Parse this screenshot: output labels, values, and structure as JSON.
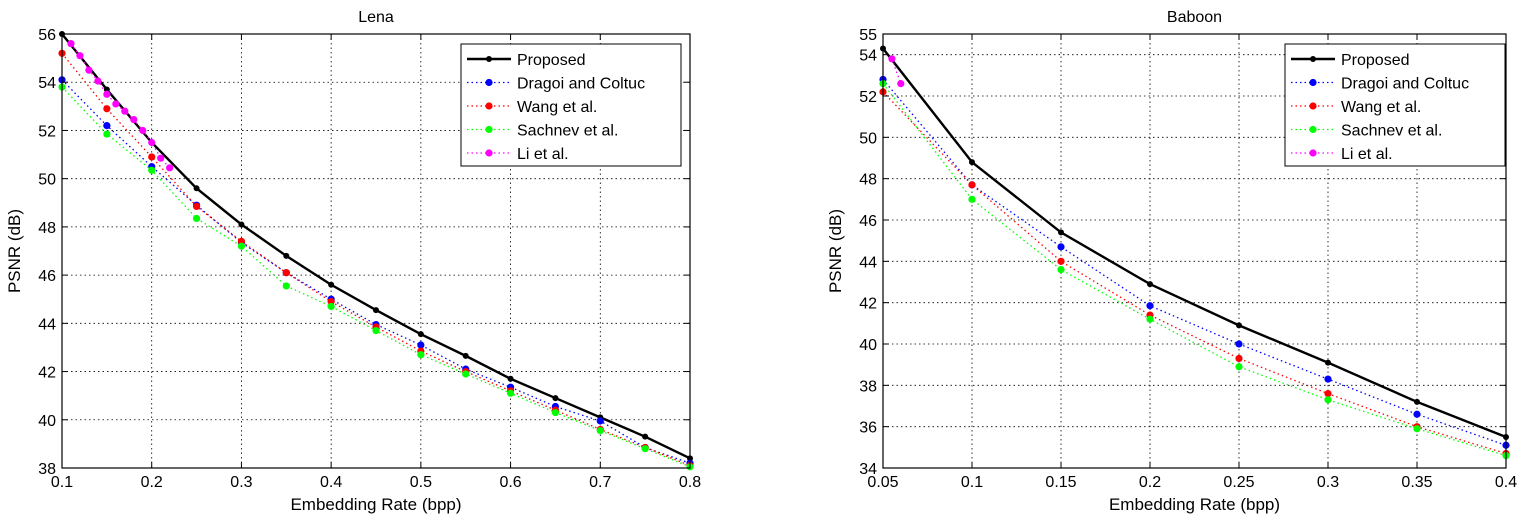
{
  "chart_data": [
    {
      "type": "line",
      "title": "Lena",
      "xlabel": "Embedding Rate (bpp)",
      "ylabel": "PSNR (dB)",
      "xlim": [
        0.1,
        0.8
      ],
      "ylim": [
        38,
        56
      ],
      "xticks": [
        0.1,
        0.2,
        0.3,
        0.4,
        0.5,
        0.6,
        0.7,
        0.8
      ],
      "yticks": [
        38,
        40,
        42,
        44,
        46,
        48,
        50,
        52,
        54,
        56
      ],
      "xtick_labels": [
        "0.1",
        "0.2",
        "0.3",
        "0.4",
        "0.5",
        "0.6",
        "0.7",
        "0.8"
      ],
      "ytick_labels": [
        "38",
        "40",
        "42",
        "44",
        "46",
        "48",
        "50",
        "52",
        "54",
        "56"
      ],
      "grid": true,
      "legend_position": "top-right",
      "series": [
        {
          "name": "Proposed",
          "color": "#000000",
          "style": "solid",
          "x": [
            0.1,
            0.15,
            0.2,
            0.25,
            0.3,
            0.35,
            0.4,
            0.45,
            0.5,
            0.55,
            0.6,
            0.65,
            0.7,
            0.75,
            0.8
          ],
          "y": [
            56.0,
            53.7,
            51.5,
            49.6,
            48.1,
            46.8,
            45.6,
            44.55,
            43.55,
            42.65,
            41.7,
            40.9,
            40.1,
            39.3,
            38.4
          ]
        },
        {
          "name": "Dragoi and Coltuc",
          "color": "#0000ff",
          "style": "dotted",
          "x": [
            0.1,
            0.15,
            0.2,
            0.25,
            0.3,
            0.35,
            0.4,
            0.45,
            0.5,
            0.55,
            0.6,
            0.65,
            0.7,
            0.75,
            0.8
          ],
          "y": [
            54.1,
            52.2,
            50.5,
            48.9,
            47.35,
            46.1,
            45.0,
            43.95,
            43.1,
            42.1,
            41.35,
            40.55,
            39.95,
            38.85,
            38.2
          ]
        },
        {
          "name": "Wang et al.",
          "color": "#ff0000",
          "style": "dotted",
          "x": [
            0.1,
            0.15,
            0.2,
            0.25,
            0.3,
            0.35,
            0.4,
            0.45,
            0.5,
            0.55,
            0.6,
            0.65,
            0.7,
            0.75,
            0.8
          ],
          "y": [
            55.2,
            52.9,
            50.9,
            48.85,
            47.4,
            46.1,
            44.9,
            43.85,
            42.85,
            42.0,
            41.2,
            40.4,
            39.6,
            38.85,
            38.1
          ]
        },
        {
          "name": "Sachnev et al.",
          "color": "#00ff00",
          "style": "dotted",
          "x": [
            0.1,
            0.15,
            0.2,
            0.25,
            0.3,
            0.35,
            0.4,
            0.45,
            0.5,
            0.55,
            0.6,
            0.65,
            0.7,
            0.75,
            0.8
          ],
          "y": [
            53.8,
            51.85,
            50.35,
            48.35,
            47.2,
            45.55,
            44.7,
            43.7,
            42.7,
            41.9,
            41.1,
            40.3,
            39.55,
            38.8,
            38.05
          ]
        },
        {
          "name": "Li et al.",
          "color": "#ff00ff",
          "style": "dotted",
          "x": [
            0.11,
            0.12,
            0.13,
            0.14,
            0.15,
            0.16,
            0.17,
            0.18,
            0.19,
            0.2,
            0.21,
            0.22
          ],
          "y": [
            55.6,
            55.1,
            54.5,
            54.05,
            53.5,
            53.1,
            52.8,
            52.45,
            52.0,
            51.5,
            50.85,
            50.45
          ]
        }
      ]
    },
    {
      "type": "line",
      "title": "Baboon",
      "xlabel": "Embedding Rate (bpp)",
      "ylabel": "PSNR (dB)",
      "xlim": [
        0.05,
        0.4
      ],
      "ylim": [
        34,
        55
      ],
      "xticks": [
        0.05,
        0.1,
        0.15,
        0.2,
        0.25,
        0.3,
        0.35,
        0.4
      ],
      "yticks": [
        34,
        36,
        38,
        40,
        42,
        44,
        46,
        48,
        50,
        52,
        54,
        55
      ],
      "xtick_labels": [
        "0.05",
        "0.1",
        "0.15",
        "0.2",
        "0.25",
        "0.3",
        "0.35",
        "0.4"
      ],
      "ytick_labels": [
        "34",
        "36",
        "38",
        "40",
        "42",
        "44",
        "46",
        "48",
        "50",
        "52",
        "54",
        "55"
      ],
      "grid": true,
      "legend_position": "top-right",
      "series": [
        {
          "name": "Proposed",
          "color": "#000000",
          "style": "solid",
          "x": [
            0.05,
            0.1,
            0.15,
            0.2,
            0.25,
            0.3,
            0.35,
            0.4
          ],
          "y": [
            54.3,
            48.8,
            45.4,
            42.9,
            40.9,
            39.1,
            37.2,
            35.5
          ]
        },
        {
          "name": "Dragoi and Coltuc",
          "color": "#0000ff",
          "style": "dotted",
          "x": [
            0.05,
            0.1,
            0.15,
            0.2,
            0.25,
            0.3,
            0.35,
            0.4
          ],
          "y": [
            52.8,
            47.7,
            44.7,
            41.85,
            40.0,
            38.3,
            36.6,
            35.1
          ]
        },
        {
          "name": "Wang et al.",
          "color": "#ff0000",
          "style": "dotted",
          "x": [
            0.05,
            0.1,
            0.15,
            0.2,
            0.25,
            0.3,
            0.35,
            0.4
          ],
          "y": [
            52.2,
            47.7,
            44.0,
            41.4,
            39.3,
            37.6,
            36.0,
            34.7
          ]
        },
        {
          "name": "Sachnev et al.",
          "color": "#00ff00",
          "style": "dotted",
          "x": [
            0.05,
            0.1,
            0.15,
            0.2,
            0.25,
            0.3,
            0.35,
            0.4
          ],
          "y": [
            52.6,
            47.0,
            43.6,
            41.2,
            38.9,
            37.3,
            35.9,
            34.6
          ]
        },
        {
          "name": "Li et al.",
          "color": "#ff00ff",
          "style": "dotted",
          "x": [
            0.055,
            0.06
          ],
          "y": [
            53.8,
            52.6
          ]
        }
      ]
    }
  ]
}
